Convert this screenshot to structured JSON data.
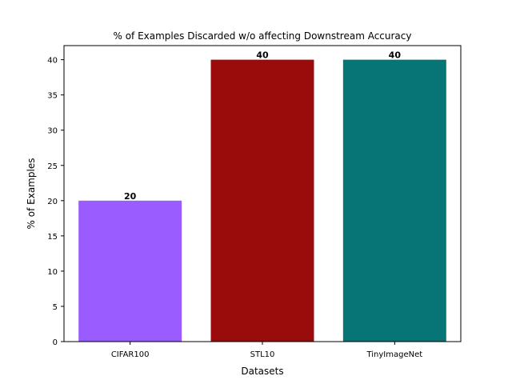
{
  "chart_data": {
    "type": "bar",
    "title": "% of Examples Discarded w/o affecting Downstream Accuracy",
    "xlabel": "Datasets",
    "ylabel": "% of Examples",
    "categories": [
      "CIFAR100",
      "STL10",
      "TinyImageNet"
    ],
    "values": [
      20,
      40,
      40
    ],
    "data_labels": [
      "20",
      "40",
      "40"
    ],
    "colors": [
      "#9a5cff",
      "#9a0b0b",
      "#077575"
    ],
    "ylim": [
      0,
      42
    ],
    "yticks": [
      0,
      5,
      10,
      15,
      20,
      25,
      30,
      35,
      40
    ],
    "grid": false,
    "legend": "none"
  }
}
